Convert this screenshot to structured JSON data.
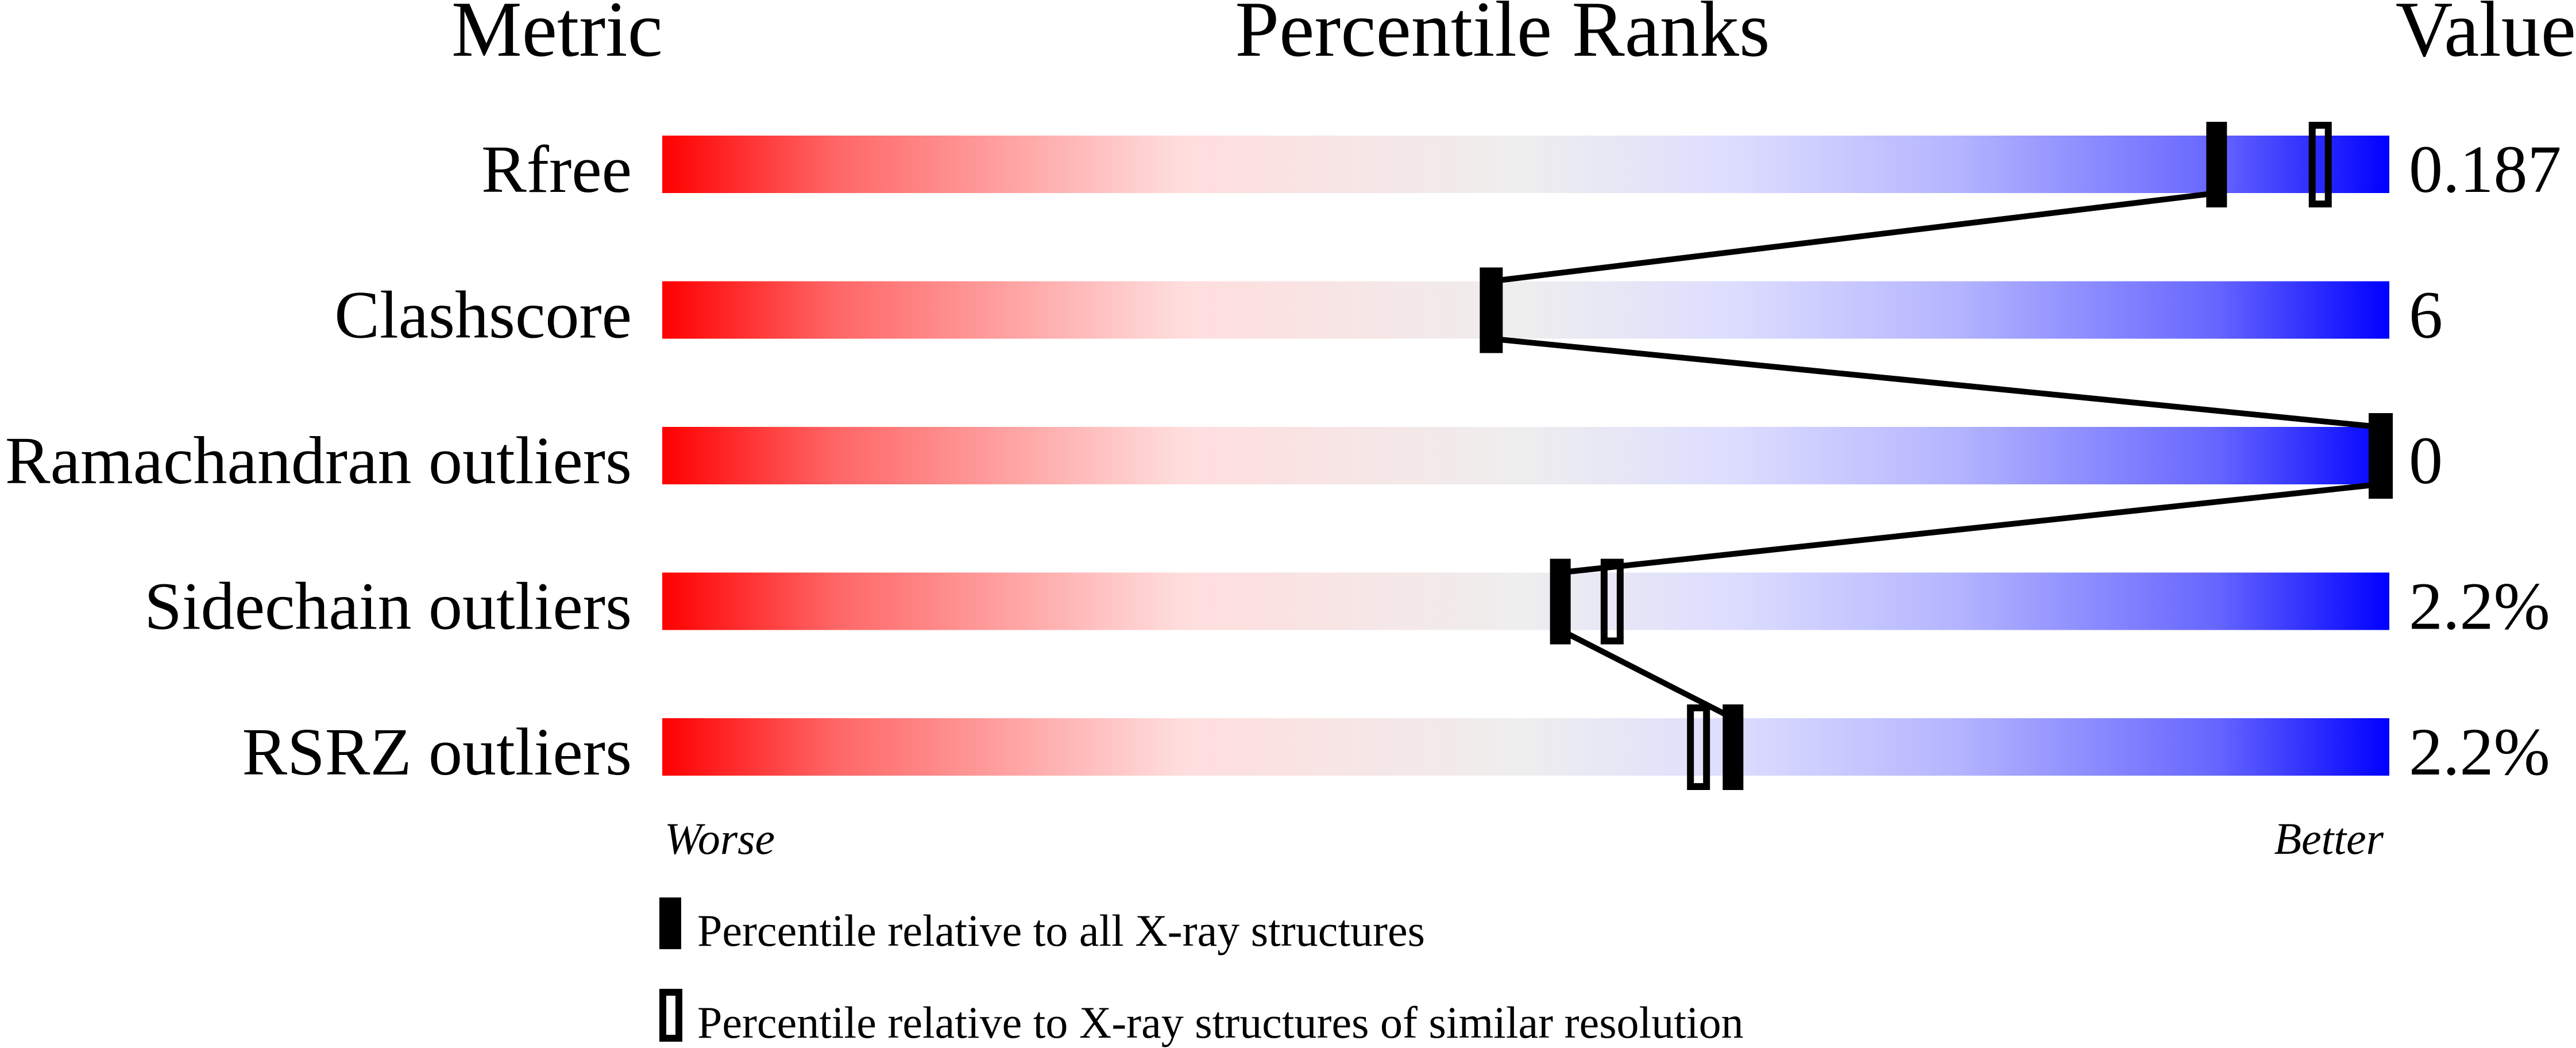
{
  "chart_data": {
    "type": "percentile-slider",
    "headers": {
      "metric": "Metric",
      "ranks": "Percentile Ranks",
      "value": "Value"
    },
    "xlim": [
      0,
      100
    ],
    "worse_label": "Worse",
    "better_label": "Better",
    "gradient_colors": [
      "#ff0000",
      "#eeeeee",
      "#0000ff"
    ],
    "rows": [
      {
        "metric": "Rfree",
        "value": "0.187",
        "percentile_all": 90,
        "percentile_similar": 96
      },
      {
        "metric": "Clashscore",
        "value": "6",
        "percentile_all": 48,
        "percentile_similar": 48
      },
      {
        "metric": "Ramachandran outliers",
        "value": "0",
        "percentile_all": 100,
        "percentile_similar": 100
      },
      {
        "metric": "Sidechain outliers",
        "value": "2.2%",
        "percentile_all": 52,
        "percentile_similar": 55
      },
      {
        "metric": "RSRZ outliers",
        "value": "2.2%",
        "percentile_all": 62,
        "percentile_similar": 60
      }
    ],
    "legend": [
      {
        "marker": "filled",
        "label": "Percentile relative to all X-ray structures"
      },
      {
        "marker": "open",
        "label": "Percentile relative to X-ray structures of similar resolution"
      }
    ]
  }
}
